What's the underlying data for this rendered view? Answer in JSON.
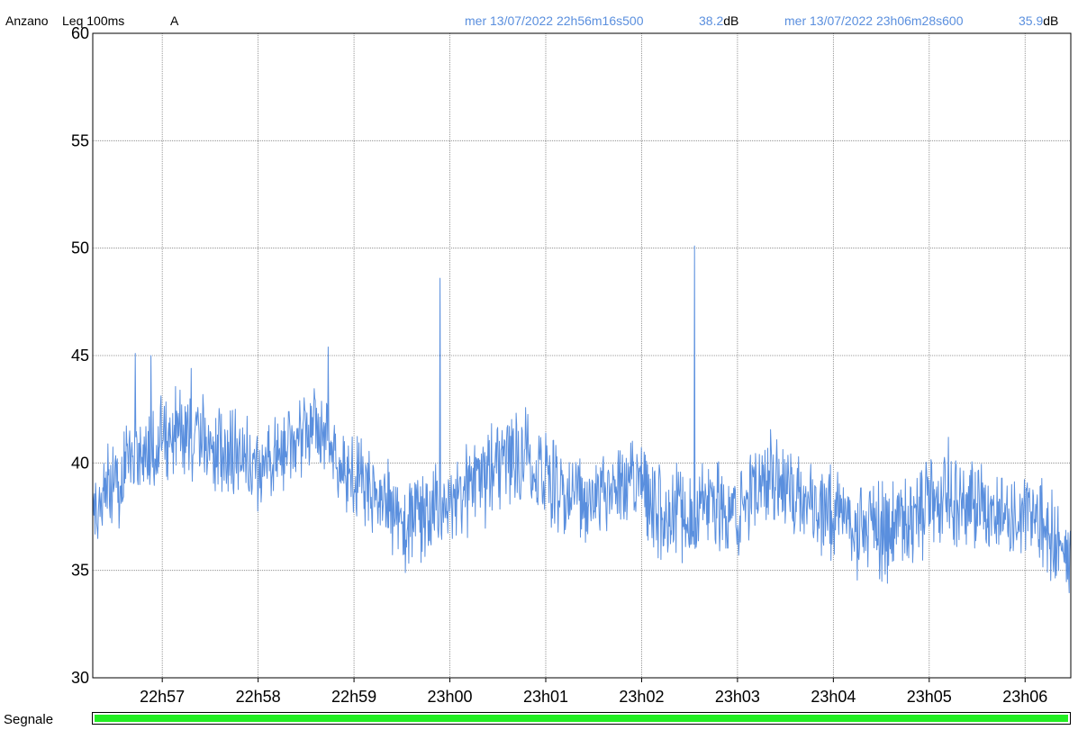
{
  "header": {
    "location": "Anzano",
    "measure": "Leq 100ms",
    "weighting": "A",
    "cursor1": {
      "timestamp": "mer 13/07/2022 22h56m16s500",
      "value": "38.2",
      "unit": "dB"
    },
    "cursor2": {
      "timestamp": "mer 13/07/2022 23h06m28s600",
      "value": "35.9",
      "unit": "dB"
    }
  },
  "colors": {
    "series": "#5a8fde",
    "signal": "#22ee22",
    "grid": "#7f7f7f",
    "cursor_text": "#5a8fde"
  },
  "signal": {
    "label": "Segnale",
    "level": 1.0
  },
  "chart_data": {
    "type": "line",
    "xlabel": "",
    "ylabel": "",
    "x_tick_labels": [
      "22h57",
      "22h58",
      "22h59",
      "23h00",
      "23h01",
      "23h02",
      "23h03",
      "23h04",
      "23h05",
      "23h06"
    ],
    "y_tick_labels": [
      "30",
      "35",
      "40",
      "45",
      "50",
      "55",
      "60"
    ],
    "xlim": [
      "22h56m16s500",
      "23h06m28s600"
    ],
    "ylim": [
      30,
      60
    ],
    "grid": true,
    "series": [
      {
        "name": "",
        "x": [
          "22h56m16s",
          "22h56m30s",
          "22h56m45s",
          "22h57m00s",
          "22h57m15s",
          "22h57m30s",
          "22h57m45s",
          "22h58m00s",
          "22h58m15s",
          "22h58m30s",
          "22h58m45s",
          "22h59m00s",
          "22h59m15s",
          "22h59m30s",
          "22h59m45s",
          "23h00m00s",
          "23h00m15s",
          "23h00m30s",
          "23h00m45s",
          "23h01m00s",
          "23h01m15s",
          "23h01m30s",
          "23h01m45s",
          "23h02m00s",
          "23h02m15s",
          "23h02m30s",
          "23h02m45s",
          "23h03m00s",
          "23h03m15s",
          "23h03m30s",
          "23h03m45s",
          "23h04m00s",
          "23h04m15s",
          "23h04m30s",
          "23h04m45s",
          "23h05m00s",
          "23h05m15s",
          "23h05m30s",
          "23h05m45s",
          "23h06m00s",
          "23h06m15s",
          "23h06m28s"
        ],
        "y": [
          38.2,
          39.0,
          40.2,
          41.0,
          41.5,
          41.0,
          40.2,
          39.6,
          40.2,
          41.5,
          41.0,
          39.5,
          38.3,
          37.5,
          37.2,
          38.0,
          38.8,
          40.0,
          40.4,
          39.3,
          38.5,
          38.3,
          39.0,
          39.2,
          37.5,
          37.6,
          38.0,
          37.6,
          39.5,
          39.0,
          38.2,
          37.5,
          37.0,
          36.8,
          37.2,
          38.0,
          38.5,
          38.2,
          37.8,
          37.5,
          37.0,
          35.9
        ]
      }
    ],
    "peaks": [
      {
        "x": "22h56m43s",
        "y": 45.1
      },
      {
        "x": "22h56m53s",
        "y": 45.0
      },
      {
        "x": "22h57m18s",
        "y": 44.4
      },
      {
        "x": "22h58m44s",
        "y": 45.4
      },
      {
        "x": "22h59m54s",
        "y": 48.6
      },
      {
        "x": "23h02m33s",
        "y": 50.1
      },
      {
        "x": "23h05m12s",
        "y": 41.2
      },
      {
        "x": "22h59m32s",
        "y": 34.9
      },
      {
        "x": "23h04m34s",
        "y": 34.4
      }
    ]
  }
}
